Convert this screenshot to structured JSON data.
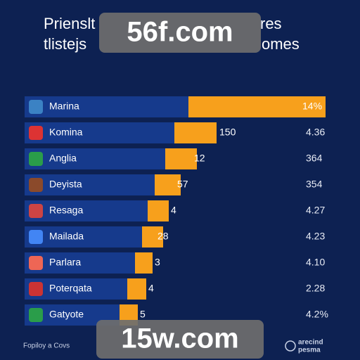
{
  "header": {
    "title_line1": "Prienslt",
    "title_line1_end": "res",
    "title_line2": "tlistejs",
    "title_line2_end": "omes"
  },
  "rows": [
    {
      "name": "Marina",
      "bar_label": "14%"
    },
    {
      "name": "Komina",
      "bar_label": "150",
      "side_value": "4.36"
    },
    {
      "name": "Anglia",
      "bar_label": "12",
      "side_value": "364"
    },
    {
      "name": "Deyista",
      "bar_label": "57",
      "side_value": "354"
    },
    {
      "name": "Resaga",
      "bar_label": "4",
      "side_value": "4.27"
    },
    {
      "name": "Mailada",
      "bar_label": "28",
      "side_value": "4.23"
    },
    {
      "name": "Parlara",
      "bar_label": "3",
      "side_value": "4.10"
    },
    {
      "name": "Poterqata",
      "bar_label": "4",
      "side_value": "2.28"
    },
    {
      "name": "Gatyote",
      "bar_label": "5",
      "side_value": "4.2%"
    }
  ],
  "footer": {
    "left": "Fopiloy a Covs",
    "right_line1": "arecind",
    "right_line2": "pesma"
  },
  "watermarks": [
    "56f.com",
    "15w.com"
  ]
}
